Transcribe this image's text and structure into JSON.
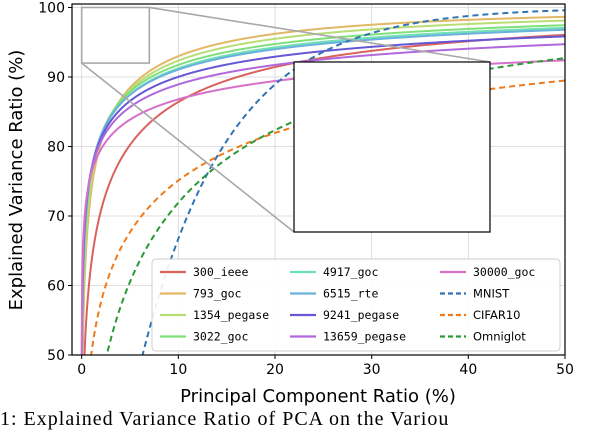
{
  "chart_data": {
    "type": "line",
    "xlabel": "Principal Component Ratio (%)",
    "ylabel": "Explained Variance Ratio (%)",
    "xlim": [
      -1,
      50
    ],
    "ylim": [
      50,
      100.5
    ],
    "xticks": [
      0,
      10,
      20,
      30,
      40,
      50
    ],
    "yticks": [
      50,
      60,
      70,
      80,
      90,
      100
    ],
    "grid": true,
    "legend_position": "lower-center",
    "legend_columns": 3,
    "series": [
      {
        "name": "300_ieee",
        "color": "#d9625c",
        "style": "solid",
        "k": 1.0,
        "s": 0.3
      },
      {
        "name": "793_goc",
        "color": "#e2b765",
        "style": "solid",
        "k": 2.6,
        "s": 0.3
      },
      {
        "name": "1354_pegase",
        "color": "#b8dd74",
        "style": "solid",
        "k": 3.3,
        "s": 0.27
      },
      {
        "name": "3022_goc",
        "color": "#7fe07a",
        "style": "solid",
        "k": 4.5,
        "s": 0.24
      },
      {
        "name": "4917_goc",
        "color": "#6fe0b3",
        "style": "solid",
        "k": 4.8,
        "s": 0.23
      },
      {
        "name": "6515_rte",
        "color": "#6ab1de",
        "style": "solid",
        "k": 5.5,
        "s": 0.22
      },
      {
        "name": "9241_pegase",
        "color": "#6658d4",
        "style": "solid",
        "k": 6.5,
        "s": 0.2
      },
      {
        "name": "13659_pegase",
        "color": "#b168dd",
        "style": "solid",
        "k": 8.0,
        "s": 0.18
      },
      {
        "name": "30000_goc",
        "color": "#d670c8",
        "style": "solid",
        "k": 11.0,
        "s": 0.15
      },
      {
        "name": "MNIST",
        "color": "#2f74b5",
        "style": "dashed",
        "k": 0.11,
        "s": 1.0
      },
      {
        "name": "CIFAR10",
        "color": "#f07a1a",
        "style": "dashed",
        "k": 0.3,
        "s": 0.3
      },
      {
        "name": "Omniglot",
        "color": "#2a9a35",
        "style": "dashed",
        "k": 0.17,
        "s": 0.45
      }
    ],
    "zoom_region": {
      "xlim": [
        0,
        7
      ],
      "ylim": [
        92,
        100
      ]
    }
  },
  "caption": "1:  Explained  Variance  Ratio  of  PCA  on  the  Variou"
}
